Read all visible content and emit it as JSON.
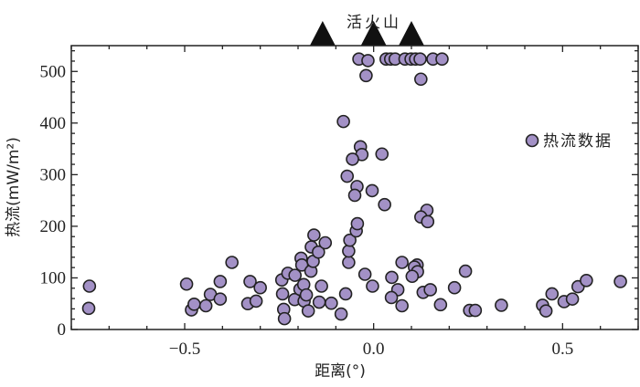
{
  "chart_data": {
    "type": "scatter",
    "title": "",
    "xlabel": "距离(°)",
    "ylabel": "热流(mW/m²)",
    "xlim": [
      -0.8,
      0.7
    ],
    "ylim": [
      0,
      550
    ],
    "xticks": [
      -0.5,
      0.0,
      0.5
    ],
    "xtick_labels": [
      "−0.5",
      "0.0",
      "0.5"
    ],
    "yticks": [
      0,
      100,
      200,
      300,
      400,
      500
    ],
    "ytick_labels": [
      "0",
      "100",
      "200",
      "300",
      "400",
      "500"
    ],
    "grid": false,
    "legend": {
      "placement": "right",
      "entries": [
        "热流数据"
      ]
    },
    "annotation": {
      "label": "活火山",
      "volcano_x": [
        -0.135,
        0.0,
        0.1
      ]
    },
    "series": [
      {
        "name": "热流数据",
        "color": "#a391c6",
        "points": [
          [
            -0.752,
            84
          ],
          [
            -0.754,
            41
          ],
          [
            -0.495,
            88
          ],
          [
            -0.482,
            38
          ],
          [
            -0.475,
            49
          ],
          [
            -0.444,
            46
          ],
          [
            -0.432,
            68
          ],
          [
            -0.406,
            93
          ],
          [
            -0.406,
            59
          ],
          [
            -0.375,
            130
          ],
          [
            -0.333,
            50
          ],
          [
            -0.327,
            93
          ],
          [
            -0.311,
            55
          ],
          [
            -0.3,
            81
          ],
          [
            -0.243,
            96
          ],
          [
            -0.241,
            69
          ],
          [
            -0.238,
            39
          ],
          [
            -0.236,
            21
          ],
          [
            -0.227,
            109
          ],
          [
            -0.208,
            105
          ],
          [
            -0.209,
            58
          ],
          [
            -0.195,
            78
          ],
          [
            -0.192,
            138
          ],
          [
            -0.19,
            125
          ],
          [
            -0.185,
            87
          ],
          [
            -0.184,
            55
          ],
          [
            -0.178,
            67
          ],
          [
            -0.173,
            36
          ],
          [
            -0.166,
            113
          ],
          [
            -0.165,
            160
          ],
          [
            -0.16,
            132
          ],
          [
            -0.158,
            183
          ],
          [
            -0.146,
            150
          ],
          [
            -0.138,
            84
          ],
          [
            -0.144,
            53
          ],
          [
            -0.128,
            168
          ],
          [
            -0.112,
            51
          ],
          [
            -0.086,
            30
          ],
          [
            -0.074,
            69
          ],
          [
            -0.066,
            130
          ],
          [
            -0.066,
            152
          ],
          [
            -0.063,
            173
          ],
          [
            -0.046,
            191
          ],
          [
            -0.043,
            205
          ],
          [
            -0.023,
            107
          ],
          [
            -0.003,
            84
          ],
          [
            -0.08,
            403
          ],
          [
            -0.035,
            354
          ],
          [
            -0.031,
            339
          ],
          [
            -0.056,
            330
          ],
          [
            0.022,
            340
          ],
          [
            -0.07,
            297
          ],
          [
            -0.044,
            277
          ],
          [
            -0.05,
            260
          ],
          [
            -0.004,
            269
          ],
          [
            0.029,
            242
          ],
          [
            0.141,
            231
          ],
          [
            0.125,
            218
          ],
          [
            0.143,
            209
          ],
          [
            -0.039,
            524
          ],
          [
            -0.015,
            521
          ],
          [
            -0.02,
            492
          ],
          [
            0.033,
            524
          ],
          [
            0.045,
            524
          ],
          [
            0.057,
            524
          ],
          [
            0.083,
            524
          ],
          [
            0.099,
            524
          ],
          [
            0.111,
            524
          ],
          [
            0.123,
            524
          ],
          [
            0.157,
            524
          ],
          [
            0.181,
            524
          ],
          [
            0.125,
            485
          ],
          [
            0.075,
            130
          ],
          [
            0.048,
            101
          ],
          [
            0.064,
            77
          ],
          [
            0.047,
            62
          ],
          [
            0.075,
            46
          ],
          [
            0.115,
            125
          ],
          [
            0.108,
            121
          ],
          [
            0.116,
            112
          ],
          [
            0.102,
            103
          ],
          [
            0.131,
            72
          ],
          [
            0.15,
            77
          ],
          [
            0.177,
            48
          ],
          [
            0.214,
            81
          ],
          [
            0.243,
            113
          ],
          [
            0.254,
            37
          ],
          [
            0.269,
            37
          ],
          [
            0.338,
            47
          ],
          [
            0.447,
            47
          ],
          [
            0.456,
            36
          ],
          [
            0.472,
            69
          ],
          [
            0.504,
            54
          ],
          [
            0.526,
            59
          ],
          [
            0.541,
            83
          ],
          [
            0.563,
            95
          ],
          [
            0.653,
            93
          ]
        ]
      }
    ]
  }
}
